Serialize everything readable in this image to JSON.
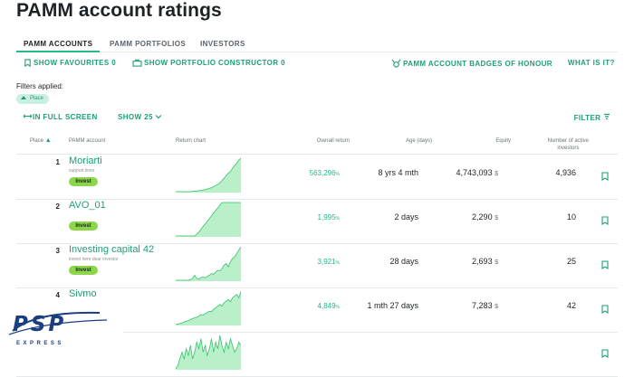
{
  "page": {
    "title": "PAMM account ratings",
    "tabs": [
      {
        "label": "PAMM ACCOUNTS",
        "active": true
      },
      {
        "label": "PAMM PORTFOLIOS",
        "active": false
      },
      {
        "label": "INVESTORS",
        "active": false
      }
    ],
    "toolbar": {
      "show_favourites": "SHOW FAVOURITES 0",
      "show_portfolio": "SHOW PORTFOLIO CONSTRUCTOR 0",
      "badges": "PAMM ACCOUNT BADGES OF HONOUR",
      "what_is_it": "WHAT IS IT?"
    },
    "filters": {
      "label": "Filters applied:",
      "chip": "Place"
    },
    "controls": {
      "fullscreen": "IN FULL SCREEN",
      "show": "SHOW 25",
      "filter": "FILTER"
    },
    "columns": {
      "place": "Place",
      "account": "PAMM account",
      "chart": "Return chart",
      "overall": "Overall return",
      "age": "Age (days)",
      "equity": "Equity",
      "investors_line1": "Number of active",
      "investors_line2": "investors"
    },
    "invest_label": "Invest",
    "currency": "$",
    "percent": "%",
    "rows": [
      {
        "rank": "1",
        "name": "Moriarti",
        "desc": "support lines",
        "ret": "563,296",
        "age": "8 yrs 4 mth",
        "equity": "4,743,093",
        "investors": "4,936",
        "invest": true,
        "spark": [
          0,
          0,
          0,
          0,
          0,
          0,
          0,
          0,
          0.01,
          0.01,
          0.02,
          0.03,
          0.04,
          0.05,
          0.06,
          0.08,
          0.1,
          0.12,
          0.15,
          0.18,
          0.22,
          0.27,
          0.33,
          0.4,
          0.48,
          0.55,
          0.6,
          0.7,
          0.78,
          0.85,
          0.95,
          1.0
        ]
      },
      {
        "rank": "2",
        "name": "AVO_01",
        "desc": "",
        "ret": "1,995",
        "age": "2 days",
        "equity": "2,290",
        "investors": "10",
        "invest": true,
        "spark": [
          0,
          0,
          0,
          0,
          0,
          0,
          0,
          0,
          0,
          0,
          0.05,
          0.12,
          0.2,
          0.28,
          0.36,
          0.44,
          0.52,
          0.6,
          0.68,
          0.76,
          0.84,
          0.92,
          1,
          1,
          1,
          1,
          1,
          1,
          1,
          1,
          1,
          1
        ]
      },
      {
        "rank": "3",
        "name": "Investing capital 42",
        "desc": "invest here dear investor",
        "ret": "3,921",
        "age": "28 days",
        "equity": "2,693",
        "investors": "25",
        "invest": true,
        "spark": [
          0,
          0,
          0,
          0,
          0,
          0,
          0,
          0.02,
          0.05,
          0.15,
          0.05,
          0.03,
          0.08,
          0.1,
          0.07,
          0.12,
          0.15,
          0.2,
          0.18,
          0.25,
          0.3,
          0.28,
          0.35,
          0.45,
          0.5,
          0.4,
          0.55,
          0.65,
          0.7,
          0.8,
          0.9,
          1.0
        ]
      },
      {
        "rank": "4",
        "name": "Sivmo",
        "desc": "",
        "ret": "4,849",
        "age": "1 mth 27 days",
        "equity": "7,283",
        "investors": "42",
        "invest": false,
        "spark": [
          0,
          0.02,
          0.03,
          0.05,
          0.08,
          0.1,
          0.12,
          0.15,
          0.18,
          0.2,
          0.22,
          0.25,
          0.3,
          0.28,
          0.33,
          0.36,
          0.4,
          0.38,
          0.45,
          0.5,
          0.55,
          0.6,
          0.55,
          0.65,
          0.7,
          0.75,
          0.68,
          0.8,
          0.85,
          0.9,
          0.8,
          1.0
        ]
      },
      {
        "rank": "",
        "name": "",
        "desc": "",
        "ret": "",
        "age": "",
        "equity": "",
        "investors": "",
        "invest": false,
        "spark": [
          0,
          0.1,
          0.3,
          0.5,
          0.3,
          0.6,
          0.4,
          0.7,
          0.3,
          0.5,
          0.8,
          0.6,
          0.9,
          0.5,
          0.7,
          0.4,
          0.6,
          0.9,
          0.5,
          0.8,
          0.6,
          1.0,
          0.7,
          0.5,
          0.8,
          0.6,
          0.9,
          0.7,
          0.5,
          0.6,
          0.8,
          0.7
        ]
      }
    ],
    "logo": {
      "word": "PSP",
      "sub": "EXPRESS"
    },
    "colors": {
      "accent": "#1e9e78",
      "chart_fill": "#b9f0c9",
      "chart_line": "#34c36a",
      "invest": "#8cd64a",
      "logo": "#1b3e82"
    }
  }
}
